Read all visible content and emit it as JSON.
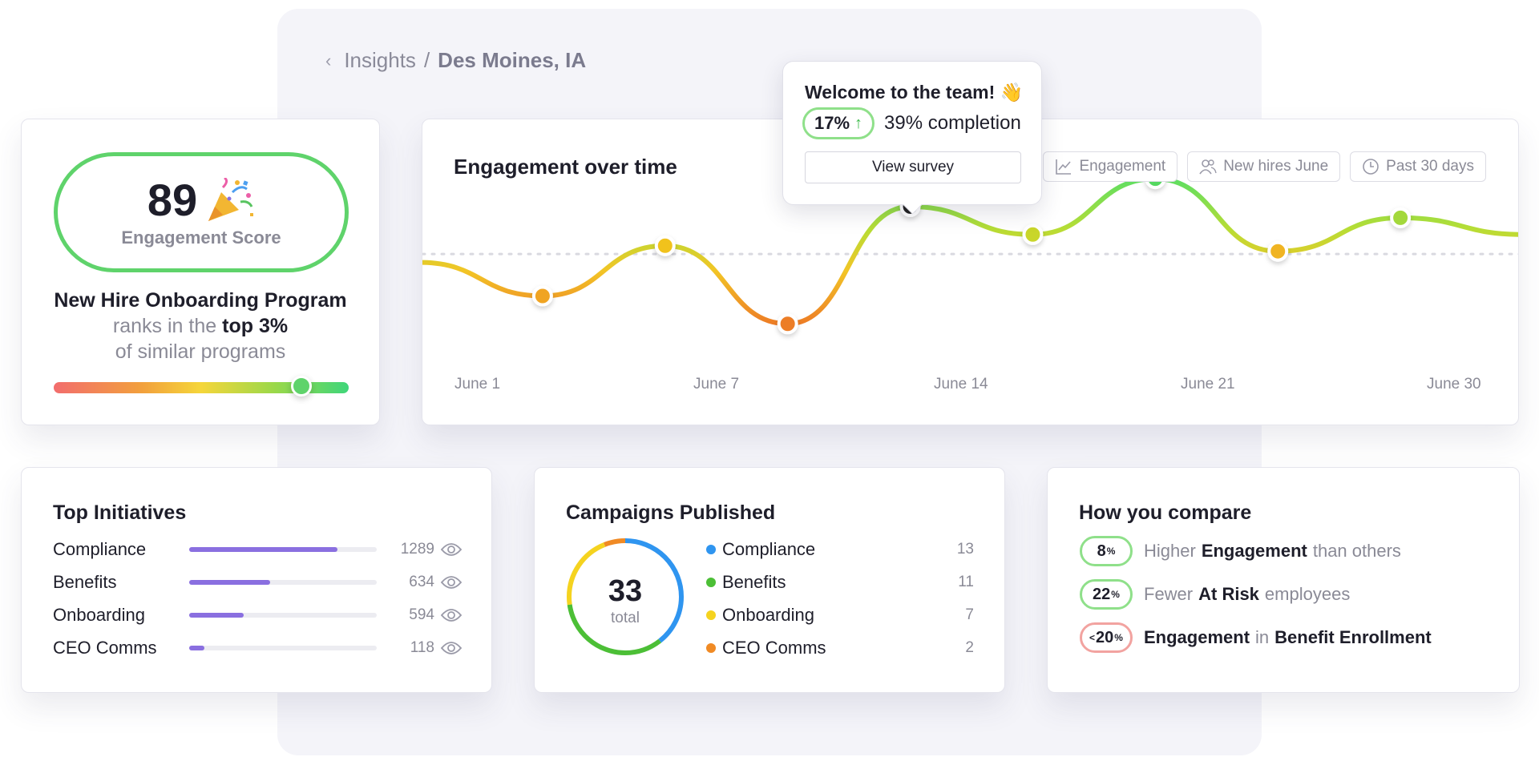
{
  "breadcrumb": {
    "back_icon": "chevron-left-icon",
    "parent": "Insights",
    "separator": "/",
    "current": "Des Moines, IA"
  },
  "score_card": {
    "score": "89",
    "score_icon": "party-popper-icon",
    "score_label": "Engagement Score",
    "program_name": "New Hire Onboarding Program",
    "ranks_text": "ranks in the",
    "rank": "top 3%",
    "comparison_text": "of similar programs",
    "percentile_position": 0.84
  },
  "engagement_chart": {
    "title": "Engagement over time",
    "filters": [
      {
        "label": "Engagement",
        "icon": "line-chart-icon"
      },
      {
        "label": "New hires June",
        "icon": "users-icon"
      },
      {
        "label": "Past 30 days",
        "icon": "clock-icon"
      }
    ],
    "tooltip": {
      "title": "Welcome to the team! 👋",
      "change": "17%",
      "change_direction": "up",
      "completion": "39% completion",
      "button_label": "View survey"
    }
  },
  "chart_data": {
    "type": "line",
    "title": "Engagement over time",
    "x_labels": [
      "June 1",
      "June 7",
      "June 14",
      "June 21",
      "June 30"
    ],
    "series": [
      {
        "x": [
          0,
          1,
          2,
          3,
          4,
          5,
          6,
          7,
          8,
          9
        ],
        "values": [
          42,
          30,
          48,
          20,
          62,
          52,
          72,
          46,
          58,
          52
        ],
        "point_colors": [
          "",
          "#f0a424",
          "#f1c21b",
          "#ec7d26",
          "#222222",
          "#c9d62a",
          "#55d860",
          "#f0b424",
          "#a3d83a",
          ""
        ]
      }
    ],
    "benchmark": 45,
    "highlighted_point": 4,
    "ylim": [
      0,
      100
    ],
    "grid": false
  },
  "top_initiatives": {
    "title": "Top Initiatives",
    "items": [
      {
        "label": "Compliance",
        "count": "1289",
        "share": 0.79
      },
      {
        "label": "Benefits",
        "count": "634",
        "share": 0.43
      },
      {
        "label": "Onboarding",
        "count": "594",
        "share": 0.29
      },
      {
        "label": "CEO Comms",
        "count": "118",
        "share": 0.08
      }
    ],
    "item_icon": "eye-icon",
    "bar_color": "#8a6fe0"
  },
  "campaigns": {
    "title": "Campaigns Published",
    "total": "33",
    "total_label": "total",
    "items": [
      {
        "label": "Compliance",
        "value": "13",
        "color": "#2f95f0"
      },
      {
        "label": "Benefits",
        "value": "11",
        "color": "#4cbf36"
      },
      {
        "label": "Onboarding",
        "value": "7",
        "color": "#f5d31f"
      },
      {
        "label": "CEO Comms",
        "value": "2",
        "color": "#f08a24"
      }
    ]
  },
  "compare": {
    "title": "How you compare",
    "rows": [
      {
        "badge": "8",
        "badge_suffix": "%",
        "badge_prefix": "",
        "tone": "positive",
        "pre": "Higher",
        "bold": "Engagement",
        "post": "than others",
        "bold2": ""
      },
      {
        "badge": "22",
        "badge_suffix": "%",
        "badge_prefix": "",
        "tone": "positive",
        "pre": "Fewer",
        "bold": "At Risk",
        "post": "employees",
        "bold2": ""
      },
      {
        "badge": "20",
        "badge_suffix": "%",
        "badge_prefix": "<",
        "tone": "negative",
        "pre": "",
        "bold": "Engagement",
        "post": "in",
        "bold2": "Benefit Enrollment"
      }
    ]
  }
}
